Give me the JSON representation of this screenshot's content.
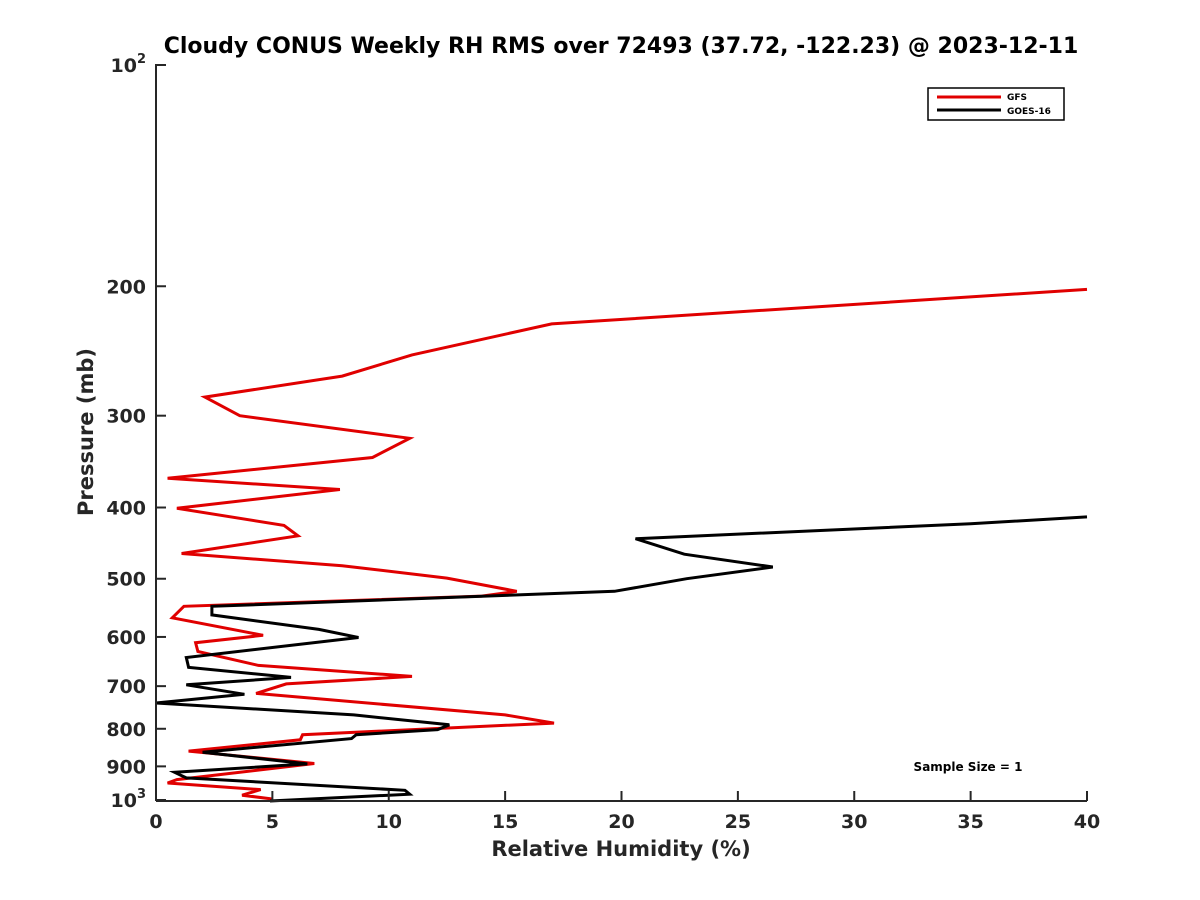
{
  "chart_data": {
    "type": "line",
    "title": "Cloudy CONUS Weekly RH RMS over 72493 (37.72, -122.23) @ 2023-12-11",
    "xlabel": "Relative Humidity (%)",
    "ylabel": "Pressure (mb)",
    "xlim": [
      0,
      40
    ],
    "ylim": [
      100,
      1000
    ],
    "y_scale": "log",
    "y_reversed": true,
    "grid": false,
    "legend_position": "top-right",
    "x_ticks": [
      "0",
      "5",
      "10",
      "15",
      "20",
      "25",
      "30",
      "35",
      "40"
    ],
    "y_ticks": [
      {
        "value": 100,
        "base": "10",
        "exp": "2"
      },
      {
        "value": 200,
        "label": "200"
      },
      {
        "value": 300,
        "label": "300"
      },
      {
        "value": 400,
        "label": "400"
      },
      {
        "value": 500,
        "label": "500"
      },
      {
        "value": 600,
        "label": "600"
      },
      {
        "value": 700,
        "label": "700"
      },
      {
        "value": 800,
        "label": "800"
      },
      {
        "value": 900,
        "label": "900"
      },
      {
        "value": 1000,
        "base": "10",
        "exp": "3"
      }
    ],
    "annotation": "Sample Size = 1",
    "series": [
      {
        "name": "GFS",
        "color": "#e00000",
        "points": [
          [
            40.0,
            202
          ],
          [
            17.0,
            225
          ],
          [
            11.0,
            248
          ],
          [
            8.0,
            265
          ],
          [
            2.1,
            283
          ],
          [
            3.6,
            300
          ],
          [
            10.9,
            322
          ],
          [
            9.3,
            342
          ],
          [
            0.5,
            365
          ],
          [
            7.9,
            378
          ],
          [
            0.9,
            401
          ],
          [
            5.5,
            423
          ],
          [
            6.1,
            437
          ],
          [
            1.1,
            462
          ],
          [
            8.0,
            480
          ],
          [
            12.5,
            499
          ],
          [
            15.5,
            520
          ],
          [
            14.0,
            528
          ],
          [
            1.2,
            545
          ],
          [
            0.7,
            565
          ],
          [
            4.6,
            597
          ],
          [
            1.7,
            611
          ],
          [
            1.8,
            628
          ],
          [
            4.4,
            656
          ],
          [
            11.0,
            679
          ],
          [
            5.6,
            695
          ],
          [
            4.3,
            716
          ],
          [
            15.0,
            766
          ],
          [
            17.1,
            786
          ],
          [
            6.3,
            815
          ],
          [
            6.2,
            828
          ],
          [
            1.4,
            858
          ],
          [
            6.8,
            892
          ],
          [
            0.9,
            938
          ],
          [
            0.5,
            948
          ],
          [
            4.5,
            968
          ],
          [
            3.7,
            985
          ],
          [
            5.0,
            997
          ]
        ]
      },
      {
        "name": "GOES-16",
        "color": "#000000",
        "points": [
          [
            40.0,
            412
          ],
          [
            35.0,
            421
          ],
          [
            20.6,
            441
          ],
          [
            22.7,
            463
          ],
          [
            26.5,
            482
          ],
          [
            22.8,
            500
          ],
          [
            19.7,
            520
          ],
          [
            2.4,
            545
          ],
          [
            2.4,
            560
          ],
          [
            7.0,
            586
          ],
          [
            8.7,
            601
          ],
          [
            1.3,
            640
          ],
          [
            1.4,
            660
          ],
          [
            5.8,
            681
          ],
          [
            1.3,
            697
          ],
          [
            3.8,
            718
          ],
          [
            0.0,
            738
          ],
          [
            8.5,
            766
          ],
          [
            12.6,
            790
          ],
          [
            12.1,
            802
          ],
          [
            8.6,
            815
          ],
          [
            8.4,
            825
          ],
          [
            2.0,
            861
          ],
          [
            6.5,
            893
          ],
          [
            0.8,
            917
          ],
          [
            1.3,
            933
          ],
          [
            10.7,
            970
          ],
          [
            10.9,
            982
          ],
          [
            4.9,
            1003
          ]
        ]
      }
    ]
  }
}
